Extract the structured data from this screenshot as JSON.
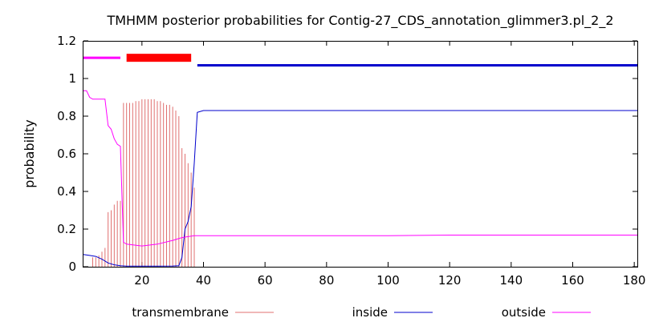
{
  "chart_data": {
    "type": "line",
    "title": "TMHMM posterior probabilities for Contig-27_CDS_annotation_glimmer3.pl_2_2",
    "xlabel": "",
    "ylabel": "probability",
    "xlim": [
      1,
      181
    ],
    "ylim": [
      0,
      1.2
    ],
    "x_ticks": [
      20,
      40,
      60,
      80,
      100,
      120,
      140,
      160,
      180
    ],
    "y_ticks": [
      "0",
      "0.2",
      "0.4",
      "0.6",
      "0.8",
      "1",
      "1.2"
    ],
    "legend": [
      {
        "name": "transmembrane",
        "color": "#e07070"
      },
      {
        "name": "inside",
        "color": "#0000cc"
      },
      {
        "name": "outside",
        "color": "#ff00ff"
      }
    ],
    "topology_bars": [
      {
        "region": "outside",
        "start": 1,
        "end": 13,
        "y": 1.11,
        "color": "#ff00ff",
        "thickness": "thin"
      },
      {
        "region": "transmembrane",
        "start": 15,
        "end": 36,
        "y": 1.11,
        "color": "#ff0000",
        "thickness": "thick"
      },
      {
        "region": "inside",
        "start": 38,
        "end": 181,
        "y": 1.07,
        "color": "#0000cc",
        "thickness": "thin"
      }
    ],
    "series": [
      {
        "name": "transmembrane",
        "style": "impulses",
        "color": "#e07070",
        "x": [
          1,
          2,
          3,
          4,
          5,
          6,
          7,
          8,
          9,
          10,
          11,
          12,
          13,
          14,
          15,
          16,
          17,
          18,
          19,
          20,
          21,
          22,
          23,
          24,
          25,
          26,
          27,
          28,
          29,
          30,
          31,
          32,
          33,
          34,
          35,
          36,
          37,
          38,
          39,
          40
        ],
        "values": [
          0.0,
          0.0,
          0.0,
          0.05,
          0.05,
          0.06,
          0.08,
          0.1,
          0.29,
          0.3,
          0.33,
          0.35,
          0.35,
          0.87,
          0.87,
          0.87,
          0.87,
          0.88,
          0.88,
          0.89,
          0.89,
          0.89,
          0.89,
          0.89,
          0.88,
          0.88,
          0.87,
          0.86,
          0.86,
          0.85,
          0.83,
          0.8,
          0.63,
          0.6,
          0.55,
          0.5,
          0.42,
          0.0,
          0.0,
          0.0
        ]
      },
      {
        "name": "inside",
        "style": "line",
        "color": "#0000cc",
        "x": [
          1,
          3,
          5,
          7,
          9,
          11,
          13,
          15,
          20,
          25,
          30,
          32,
          33,
          34,
          35,
          36,
          37,
          38,
          40,
          60,
          100,
          120,
          181
        ],
        "values": [
          0.065,
          0.06,
          0.055,
          0.04,
          0.02,
          0.01,
          0.005,
          0.003,
          0.003,
          0.003,
          0.004,
          0.005,
          0.05,
          0.2,
          0.24,
          0.32,
          0.55,
          0.82,
          0.83,
          0.83,
          0.83,
          0.83,
          0.83
        ]
      },
      {
        "name": "outside",
        "style": "line",
        "color": "#ff00ff",
        "x": [
          1,
          2,
          3,
          4,
          5,
          6,
          7,
          8,
          9,
          10,
          11,
          12,
          13,
          14,
          15,
          20,
          25,
          30,
          33,
          35,
          37,
          38,
          40,
          60,
          100,
          120,
          181
        ],
        "values": [
          0.935,
          0.935,
          0.9,
          0.89,
          0.89,
          0.89,
          0.89,
          0.89,
          0.75,
          0.73,
          0.68,
          0.65,
          0.64,
          0.13,
          0.12,
          0.11,
          0.12,
          0.14,
          0.155,
          0.16,
          0.165,
          0.165,
          0.165,
          0.165,
          0.165,
          0.168,
          0.168
        ]
      }
    ]
  }
}
